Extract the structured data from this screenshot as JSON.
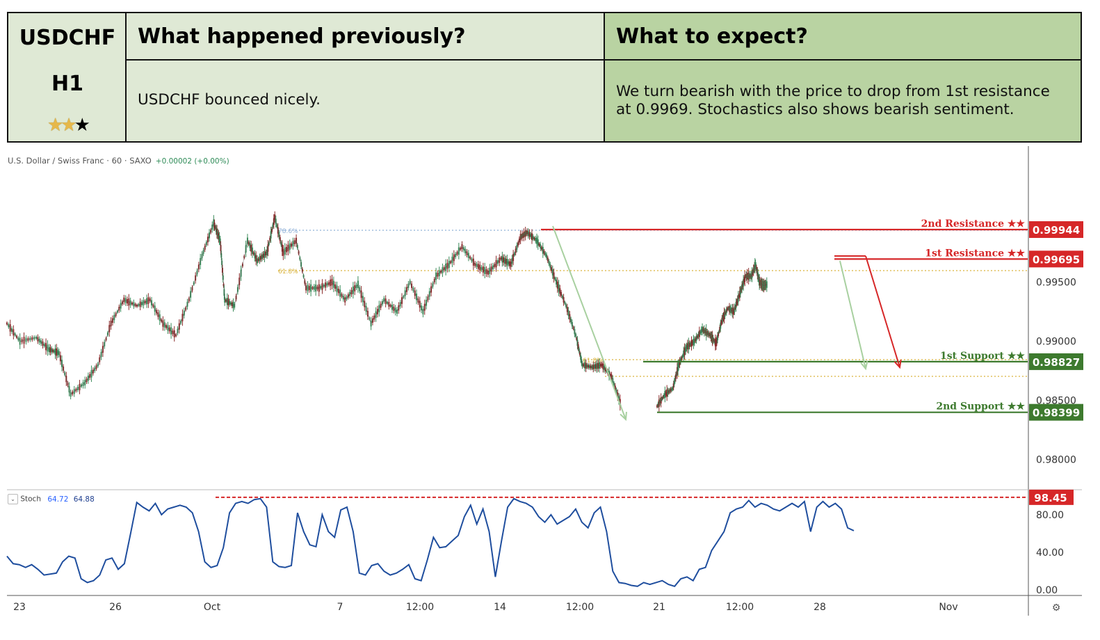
{
  "header": {
    "symbol": "USDCHF",
    "timeframe": "H1",
    "stars": {
      "filled": 2,
      "total": 3
    },
    "previous_title": "What happened previously?",
    "previous_text": "USDCHF bounced nicely.",
    "expect_title": "What to expect?",
    "expect_text_line1": "We turn bearish with the price to drop from 1st resistance",
    "expect_text_line2": "at 0.9969. Stochastics also shows bearish sentiment."
  },
  "chart_info": {
    "instrument": "U.S. Dollar / Swiss Franc · 60 · SAXO",
    "change": "+0.00002 (+0.00%)"
  },
  "stoch_info": {
    "label": "Stoch",
    "k": "64.72",
    "d": "64.88"
  },
  "colors": {
    "resistance": "#d62728",
    "support": "#3d7a2e",
    "fib": "#d9b23a",
    "fib_blue": "#8fb0d8",
    "stoch": "#1f4e9e",
    "bull": "#3b8a5a",
    "bear": "#8a2b2b"
  },
  "chart_data": {
    "type": "line",
    "title": "",
    "x_tick_labels": [
      "23",
      "26",
      "Oct",
      "7",
      "12:00",
      "14",
      "12:00",
      "21",
      "12:00",
      "28",
      "Nov"
    ],
    "price_axis": {
      "ylim": [
        0.9775,
        1.0065
      ],
      "tick_values": [
        0.98,
        0.985,
        0.99,
        0.995
      ],
      "tick_labels": [
        "0.98000",
        "0.98500",
        "0.99000",
        "0.99500"
      ]
    },
    "levels": [
      {
        "name": "2nd Resistance ★★",
        "value": 0.99944,
        "label": "0.99944",
        "kind": "resistance"
      },
      {
        "name": "1st Resistance ★★",
        "value": 0.99695,
        "label": "0.99695",
        "kind": "resistance"
      },
      {
        "name": "1st Support ★★",
        "value": 0.98827,
        "label": "0.98827",
        "kind": "support"
      },
      {
        "name": "2nd Support ★★",
        "value": 0.98399,
        "label": "0.98399",
        "kind": "support"
      }
    ],
    "fib_labels": [
      "78.6%",
      "61.8%",
      "61.8%"
    ],
    "price_path": [
      [
        0.0,
        0.9915
      ],
      [
        0.02,
        0.99
      ],
      [
        0.045,
        0.9903
      ],
      [
        0.065,
        0.9893
      ],
      [
        0.08,
        0.989
      ],
      [
        0.098,
        0.9855
      ],
      [
        0.12,
        0.9865
      ],
      [
        0.14,
        0.988
      ],
      [
        0.16,
        0.9915
      ],
      [
        0.18,
        0.9935
      ],
      [
        0.2,
        0.993
      ],
      [
        0.22,
        0.9935
      ],
      [
        0.24,
        0.9915
      ],
      [
        0.26,
        0.9905
      ],
      [
        0.28,
        0.9935
      ],
      [
        0.3,
        0.9972
      ],
      [
        0.318,
        1.0
      ],
      [
        0.328,
        0.9985
      ],
      [
        0.335,
        0.9935
      ],
      [
        0.35,
        0.993
      ],
      [
        0.37,
        0.9985
      ],
      [
        0.385,
        0.9968
      ],
      [
        0.4,
        0.9975
      ],
      [
        0.412,
        1.0005
      ],
      [
        0.425,
        0.9975
      ],
      [
        0.445,
        0.9985
      ],
      [
        0.46,
        0.9945
      ],
      [
        0.48,
        0.9945
      ],
      [
        0.5,
        0.995
      ],
      [
        0.52,
        0.9935
      ],
      [
        0.54,
        0.9948
      ],
      [
        0.56,
        0.9915
      ],
      [
        0.58,
        0.9935
      ],
      [
        0.6,
        0.9925
      ],
      [
        0.62,
        0.995
      ],
      [
        0.64,
        0.9925
      ],
      [
        0.66,
        0.9955
      ],
      [
        0.68,
        0.9965
      ],
      [
        0.7,
        0.998
      ],
      [
        0.72,
        0.9965
      ],
      [
        0.74,
        0.9958
      ],
      [
        0.76,
        0.997
      ],
      [
        0.775,
        0.9965
      ],
      [
        0.79,
        0.9988
      ],
      [
        0.8,
        0.9992
      ],
      [
        0.815,
        0.9985
      ],
      [
        0.83,
        0.9972
      ],
      [
        0.845,
        0.995
      ],
      [
        0.86,
        0.993
      ],
      [
        0.875,
        0.9905
      ],
      [
        0.885,
        0.988
      ],
      [
        0.9,
        0.9878
      ],
      [
        0.915,
        0.988
      ],
      [
        0.93,
        0.987
      ],
      [
        0.945,
        0.9845
      ]
    ],
    "price_path_2": [
      [
        0.0,
        0.9845
      ],
      [
        0.04,
        0.9855
      ],
      [
        0.08,
        0.986
      ],
      [
        0.11,
        0.988
      ],
      [
        0.15,
        0.9895
      ],
      [
        0.19,
        0.99
      ],
      [
        0.23,
        0.991
      ],
      [
        0.27,
        0.9905
      ],
      [
        0.3,
        0.9898
      ],
      [
        0.33,
        0.9918
      ],
      [
        0.36,
        0.9928
      ],
      [
        0.39,
        0.9925
      ],
      [
        0.42,
        0.994
      ],
      [
        0.45,
        0.9955
      ],
      [
        0.48,
        0.9955
      ],
      [
        0.5,
        0.9965
      ],
      [
        0.52,
        0.995
      ],
      [
        0.54,
        0.9947
      ],
      [
        0.56,
        0.9948
      ]
    ],
    "stoch": {
      "ylim": [
        -5,
        105
      ],
      "tick_values": [
        0,
        40,
        80
      ],
      "tick_labels": [
        "0.00",
        "40.00",
        "80.00"
      ],
      "overbought_level": 98.45,
      "overbought_label": "98.45",
      "values": [
        36,
        28,
        27,
        24,
        27,
        22,
        16,
        17,
        18,
        30,
        36,
        34,
        12,
        8,
        10,
        16,
        32,
        34,
        22,
        28,
        60,
        93,
        88,
        84,
        92,
        80,
        86,
        88,
        90,
        88,
        82,
        62,
        30,
        24,
        26,
        45,
        82,
        92,
        94,
        92,
        96,
        97,
        88,
        30,
        25,
        24,
        26,
        82,
        62,
        48,
        46,
        80,
        62,
        56,
        85,
        88,
        62,
        18,
        16,
        26,
        28,
        20,
        16,
        18,
        22,
        27,
        12,
        10,
        32,
        56,
        45,
        46,
        52,
        58,
        78,
        90,
        70,
        86,
        62,
        14,
        52,
        88,
        97,
        94,
        92,
        88,
        78,
        72,
        80,
        70,
        74,
        78,
        86,
        72,
        66,
        82,
        88,
        62,
        20,
        8,
        7,
        5,
        4,
        8,
        6,
        8,
        10,
        6,
        4,
        12,
        14,
        10,
        22,
        24,
        42,
        52,
        62,
        82,
        86,
        88,
        95,
        88,
        92,
        90,
        86,
        84,
        88,
        92,
        88,
        94,
        62,
        88,
        94,
        88,
        92,
        86,
        66,
        63
      ]
    }
  }
}
